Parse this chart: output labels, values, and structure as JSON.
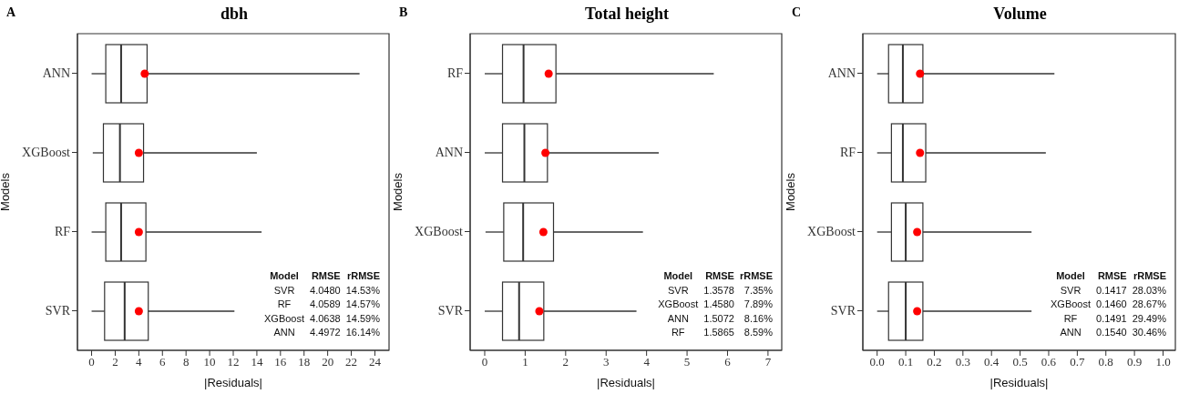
{
  "chart_data": [
    {
      "type": "box",
      "orientation": "horizontal",
      "title": "dbh",
      "xlabel": "|Residuals|",
      "ylabel": "Models",
      "color": "#333333",
      "categories": [
        "ANN",
        "XGBoost",
        "RF",
        "SVR"
      ],
      "boxes": [
        {
          "low": 0.0,
          "q1": 1.2,
          "median": 2.5,
          "q3": 4.7,
          "high": 22.7,
          "mean": 4.5
        },
        {
          "low": 0.1,
          "q1": 1.0,
          "median": 2.4,
          "q3": 4.4,
          "high": 14.0,
          "mean": 4.0
        },
        {
          "low": 0.0,
          "q1": 1.2,
          "median": 2.5,
          "q3": 4.6,
          "high": 14.4,
          "mean": 4.0
        },
        {
          "low": 0.0,
          "q1": 1.1,
          "median": 2.8,
          "q3": 4.8,
          "high": 12.1,
          "mean": 4.0
        }
      ],
      "xlim": [
        -1.2,
        25.2
      ],
      "xticks": [
        0,
        2,
        4,
        6,
        8,
        10,
        12,
        14,
        16,
        18,
        20,
        22,
        24
      ],
      "annotations": [
        "A",
        "Model",
        "RMSE",
        "rRMSE",
        "SVR",
        "4.0480",
        "14.53%",
        "RF",
        "4.0589",
        "14.57%",
        "XGBoost",
        "4.0638",
        "14.59%",
        "ANN",
        "4.4972",
        "16.14%"
      ]
    },
    {
      "type": "box",
      "orientation": "horizontal",
      "title": "Total height",
      "xlabel": "|Residuals|",
      "ylabel": "Models",
      "color": "#333333",
      "categories": [
        "RF",
        "ANN",
        "XGBoost",
        "SVR"
      ],
      "boxes": [
        {
          "low": 0.0,
          "q1": 0.44,
          "median": 0.96,
          "q3": 1.76,
          "high": 5.66,
          "mean": 1.58
        },
        {
          "low": 0.0,
          "q1": 0.44,
          "median": 0.98,
          "q3": 1.55,
          "high": 4.3,
          "mean": 1.5
        },
        {
          "low": 0.02,
          "q1": 0.47,
          "median": 0.95,
          "q3": 1.7,
          "high": 3.91,
          "mean": 1.45
        },
        {
          "low": 0.0,
          "q1": 0.44,
          "median": 0.85,
          "q3": 1.46,
          "high": 3.75,
          "mean": 1.35
        }
      ],
      "xlim": [
        -0.36,
        7.34
      ],
      "xticks": [
        0,
        1,
        2,
        3,
        4,
        5,
        6,
        7
      ],
      "annotations": [
        "B",
        "Model",
        "RMSE",
        "rRMSE",
        "SVR",
        "1.3578",
        "7.35%",
        "XGBoost",
        "1.4580",
        "7.89%",
        "ANN",
        "1.5072",
        "8.16%",
        "RF",
        "1.5865",
        "8.59%"
      ]
    },
    {
      "type": "box",
      "orientation": "horizontal",
      "title": "Volume",
      "xlabel": "|Residuals|",
      "ylabel": "Models",
      "color": "#333333",
      "categories": [
        "ANN",
        "RF",
        "XGBoost",
        "SVR"
      ],
      "boxes": [
        {
          "low": 0.0,
          "q1": 0.04,
          "median": 0.09,
          "q3": 0.16,
          "high": 0.62,
          "mean": 0.15
        },
        {
          "low": 0.0,
          "q1": 0.05,
          "median": 0.09,
          "q3": 0.17,
          "high": 0.59,
          "mean": 0.15
        },
        {
          "low": 0.0,
          "q1": 0.05,
          "median": 0.1,
          "q3": 0.16,
          "high": 0.54,
          "mean": 0.14
        },
        {
          "low": 0.0,
          "q1": 0.04,
          "median": 0.1,
          "q3": 0.16,
          "high": 0.54,
          "mean": 0.14
        }
      ],
      "xlim": [
        -0.05,
        1.043
      ],
      "xticks": [
        {
          "value": 0,
          "label": "0.0"
        },
        0.1,
        0.2,
        0.3,
        0.4,
        0.5,
        0.6,
        0.7,
        0.8,
        0.9,
        {
          "value": 1,
          "label": "1.0"
        }
      ],
      "annotations": [
        "C",
        "Model",
        "RMSE",
        "rRMSE",
        "SVR",
        "0.1417",
        "28.03%",
        "XGBoost",
        "0.1460",
        "28.67%",
        "RF",
        "0.1491",
        "29.49%",
        "ANN",
        "0.1540",
        "30.46%"
      ]
    }
  ]
}
